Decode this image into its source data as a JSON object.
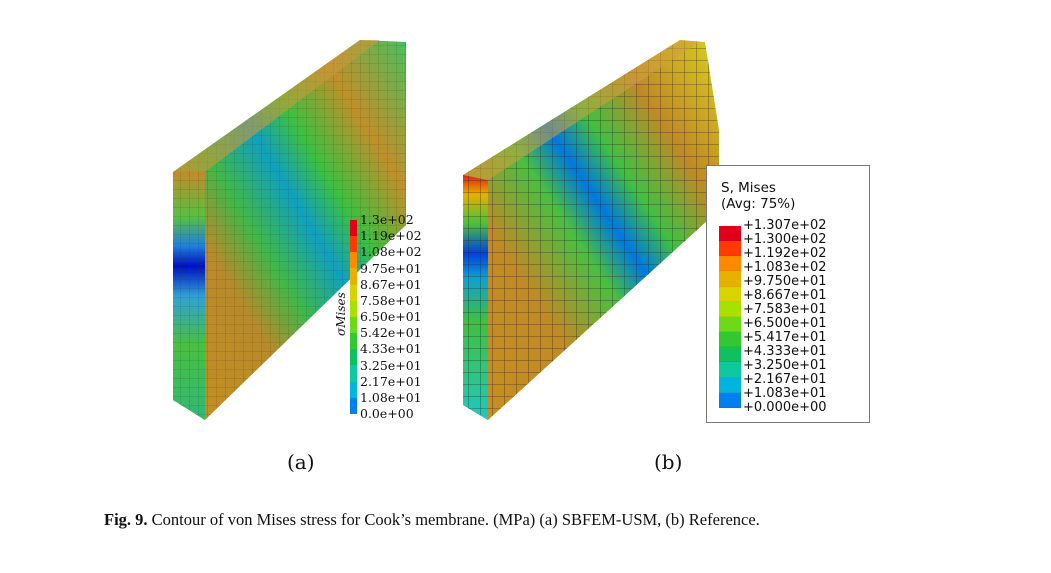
{
  "figure_a": {
    "label": "(a)",
    "legend_symbol": "σMises",
    "legend_ticks": [
      "1.3e+02",
      "1.19e+02",
      "1.08e+02",
      "9.75e+01",
      "8.67e+01",
      "7.58e+01",
      "6.50e+01",
      "5.42e+01",
      "4.33e+01",
      "3.25e+01",
      "2.17e+01",
      "1.08e+01",
      "0.0e+00"
    ]
  },
  "figure_b": {
    "label": "(b)",
    "legend_title_line1": "S, Mises",
    "legend_title_line2": "(Avg: 75%)",
    "legend_ticks": [
      "+1.307e+02",
      "+1.300e+02",
      "+1.192e+02",
      "+1.083e+02",
      "+9.750e+01",
      "+8.667e+01",
      "+7.583e+01",
      "+6.500e+01",
      "+5.417e+01",
      "+4.333e+01",
      "+3.250e+01",
      "+2.167e+01",
      "+1.083e+01",
      "+0.000e+00"
    ]
  },
  "colormap": [
    "#e0001a",
    "#ff3a00",
    "#ff8a00",
    "#e8b000",
    "#d8d400",
    "#a8e000",
    "#6ed81a",
    "#32c832",
    "#10c060",
    "#10c8a0",
    "#00b4e0",
    "#0080f0",
    "#0040e0",
    "#0000d0"
  ],
  "caption": {
    "prefix": "Fig. 9.",
    "text": "Contour of von Mises stress for Cook’s membrane. (MPa) (a) SBFEM-USM, (b) Reference."
  }
}
